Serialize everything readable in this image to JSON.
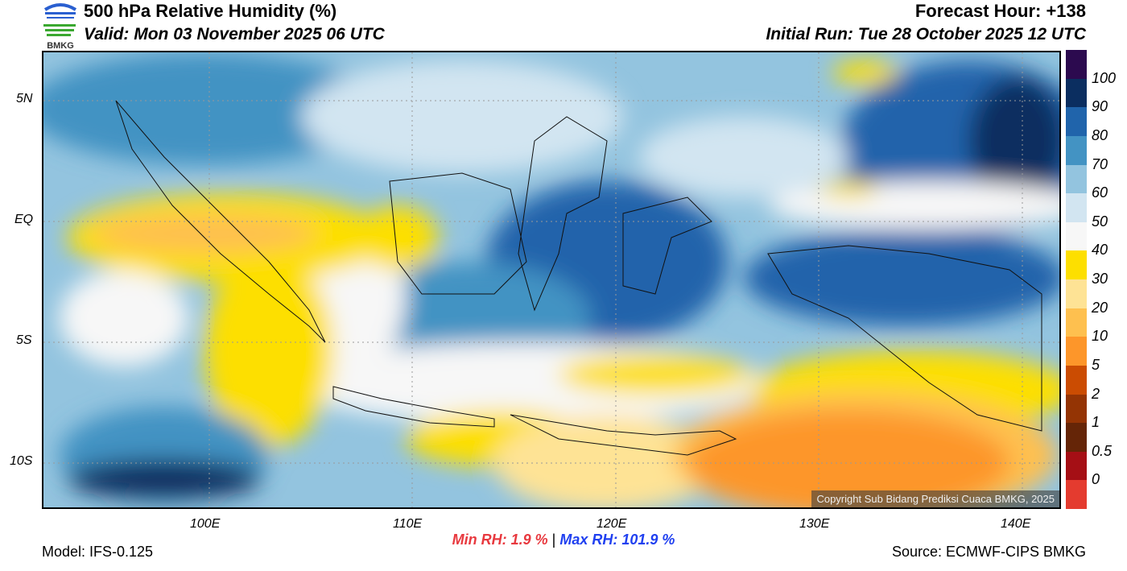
{
  "header": {
    "title": "500 hPa Relative Humidity (%)",
    "valid": "Valid: Mon 03 November 2025 06 UTC",
    "forecast_hour": "Forecast Hour: +138",
    "initial_run": "Initial Run: Tue 28 October 2025 12 UTC"
  },
  "logo": {
    "text": "BMKG"
  },
  "map": {
    "lon_ticks": [
      "100E",
      "110E",
      "120E",
      "130E",
      " 140E"
    ],
    "lat_ticks": [
      "5N",
      "EQ",
      "5S",
      "10S"
    ],
    "copyright": "Copyright Sub Bidang Prediksi Cuaca BMKG, 2025"
  },
  "colorbar": {
    "labels": [
      "100",
      "90",
      "80",
      "70",
      "60",
      "50",
      "40",
      "30",
      "20",
      "10",
      "5",
      "2",
      "1",
      "0.5",
      "0"
    ],
    "colors": [
      "#2c0a4f",
      "#0b2e60",
      "#2064ab",
      "#4393c3",
      "#93c4df",
      "#d2e5f1",
      "#f7f7f7",
      "#fddf00",
      "#fee395",
      "#fec04f",
      "#fd962a",
      "#cb4c02",
      "#943404",
      "#652507",
      "#a50f15",
      "#e43b2f"
    ]
  },
  "footer": {
    "model": "Model: IFS-0.125",
    "source": "Source: ECMWF-CIPS BMKG",
    "min_label": "Min RH:   1.9 %",
    "separator": "|",
    "max_label": "Max RH: 101.9 %"
  }
}
